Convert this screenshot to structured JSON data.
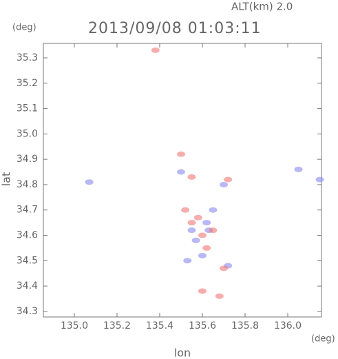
{
  "chart_data": {
    "type": "scatter",
    "title": "2013/09/08 01:03:11",
    "subtitle": "ALT(km) 2.0",
    "x_label": "lon",
    "y_label": "lat",
    "x_unit": "(deg)",
    "y_unit": "(deg)",
    "xlim": [
      134.855,
      136.158
    ],
    "ylim": [
      34.278,
      35.357
    ],
    "xticks": [
      {
        "value": 135,
        "label": "135.0"
      },
      135.2,
      135.4,
      135.6,
      135.8,
      {
        "value": 136,
        "label": "136.0"
      }
    ],
    "yticks": [
      34.3,
      34.4,
      34.5,
      34.6,
      34.7,
      34.8,
      34.9,
      {
        "value": 35,
        "label": "35.0"
      },
      35.1,
      35.2,
      35.3
    ],
    "series": [
      {
        "color": "#8888ee",
        "x": [
          135.07,
          136.05,
          136.15,
          135.6,
          135.55,
          135.62,
          135.65,
          135.7,
          135.5,
          135.57,
          135.72,
          135.53,
          135.63
        ],
        "y": [
          34.81,
          34.86,
          34.82,
          34.52,
          34.62,
          34.65,
          34.7,
          34.8,
          34.85,
          34.58,
          34.48,
          34.5,
          34.62
        ]
      },
      {
        "color": "#ee7777",
        "x": [
          135.6,
          135.68,
          135.5,
          135.55,
          135.6,
          135.65,
          135.52,
          135.62,
          135.7,
          135.38,
          135.72,
          135.55,
          135.58
        ],
        "y": [
          34.38,
          34.36,
          34.92,
          34.65,
          34.6,
          34.62,
          34.7,
          34.55,
          34.47,
          35.33,
          34.82,
          34.83,
          34.67
        ]
      }
    ]
  }
}
